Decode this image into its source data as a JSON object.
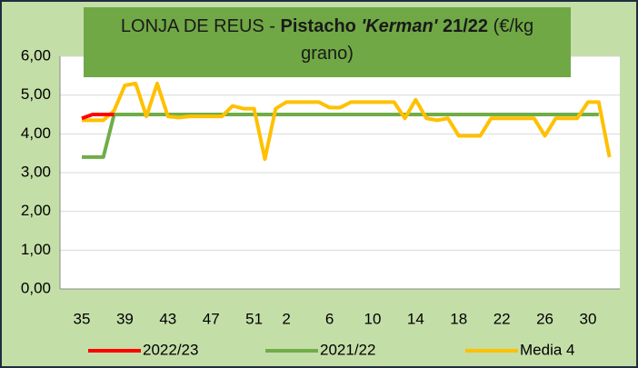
{
  "chart_data": {
    "type": "line",
    "title": [
      {
        "text": "LONJA DE REUS - ",
        "bold": false,
        "italic": false
      },
      {
        "text": "Pistacho ",
        "bold": true,
        "italic": false
      },
      {
        "text": "'Kerman'",
        "bold": true,
        "italic": true
      },
      {
        "text": " 21/22",
        "bold": true,
        "italic": false
      },
      {
        "text": " (€/kg grano)",
        "bold": false,
        "italic": false
      }
    ],
    "categories": [
      "35",
      null,
      null,
      null,
      "39",
      null,
      null,
      null,
      "43",
      null,
      null,
      null,
      "47",
      null,
      null,
      null,
      "51",
      null,
      null,
      "2",
      null,
      null,
      null,
      "6",
      null,
      null,
      null,
      "10",
      null,
      null,
      null,
      "14",
      null,
      null,
      null,
      "18",
      null,
      null,
      null,
      "22",
      null,
      null,
      null,
      "26",
      null,
      null,
      null,
      "30",
      null,
      null
    ],
    "series": [
      {
        "name": "2022/23",
        "color": "#ff0000",
        "values": [
          4.4,
          4.5,
          4.5,
          4.5,
          null,
          null,
          null,
          null,
          null,
          null,
          null,
          null,
          null,
          null,
          null,
          null,
          null,
          null,
          null,
          null,
          null,
          null,
          null,
          null,
          null,
          null,
          null,
          null,
          null,
          null,
          null,
          null,
          null,
          null,
          null,
          null,
          null,
          null,
          null,
          null,
          null,
          null,
          null,
          null,
          null,
          null,
          null,
          null,
          null,
          null
        ]
      },
      {
        "name": "2021/22",
        "color": "#70ad47",
        "values": [
          3.4,
          3.4,
          3.4,
          4.5,
          4.5,
          4.5,
          4.5,
          4.5,
          4.5,
          4.5,
          4.5,
          4.5,
          4.5,
          4.5,
          4.5,
          4.5,
          4.5,
          4.5,
          4.5,
          4.5,
          4.5,
          4.5,
          4.5,
          4.5,
          4.5,
          4.5,
          4.5,
          4.5,
          4.5,
          4.5,
          4.5,
          4.5,
          4.5,
          4.5,
          4.5,
          4.5,
          4.5,
          4.5,
          4.5,
          4.5,
          4.5,
          4.5,
          4.5,
          4.5,
          4.5,
          4.5,
          4.5,
          4.5,
          4.5,
          null
        ]
      },
      {
        "name": "Media 4",
        "color": "#ffc000",
        "values": [
          4.35,
          4.35,
          4.35,
          4.6,
          5.25,
          5.3,
          4.45,
          5.3,
          4.45,
          4.42,
          4.45,
          4.45,
          4.45,
          4.45,
          4.72,
          4.65,
          4.65,
          3.35,
          4.65,
          4.82,
          4.82,
          4.82,
          4.82,
          4.68,
          4.68,
          4.82,
          4.82,
          4.82,
          4.82,
          4.82,
          4.4,
          4.88,
          4.4,
          4.35,
          4.4,
          3.95,
          3.95,
          3.95,
          4.4,
          4.4,
          4.4,
          4.4,
          4.4,
          3.95,
          4.4,
          4.4,
          4.4,
          4.82,
          4.82,
          3.4
        ]
      }
    ],
    "ylim": [
      0,
      6
    ],
    "yticks": [
      {
        "value": 0,
        "label": "0,00"
      },
      {
        "value": 1,
        "label": "1,00"
      },
      {
        "value": 2,
        "label": "2,00"
      },
      {
        "value": 3,
        "label": "3,00"
      },
      {
        "value": 4,
        "label": "4,00"
      },
      {
        "value": 5,
        "label": "5,00"
      },
      {
        "value": 6,
        "label": "6,00"
      }
    ],
    "grid": true,
    "legend": "bottom"
  }
}
